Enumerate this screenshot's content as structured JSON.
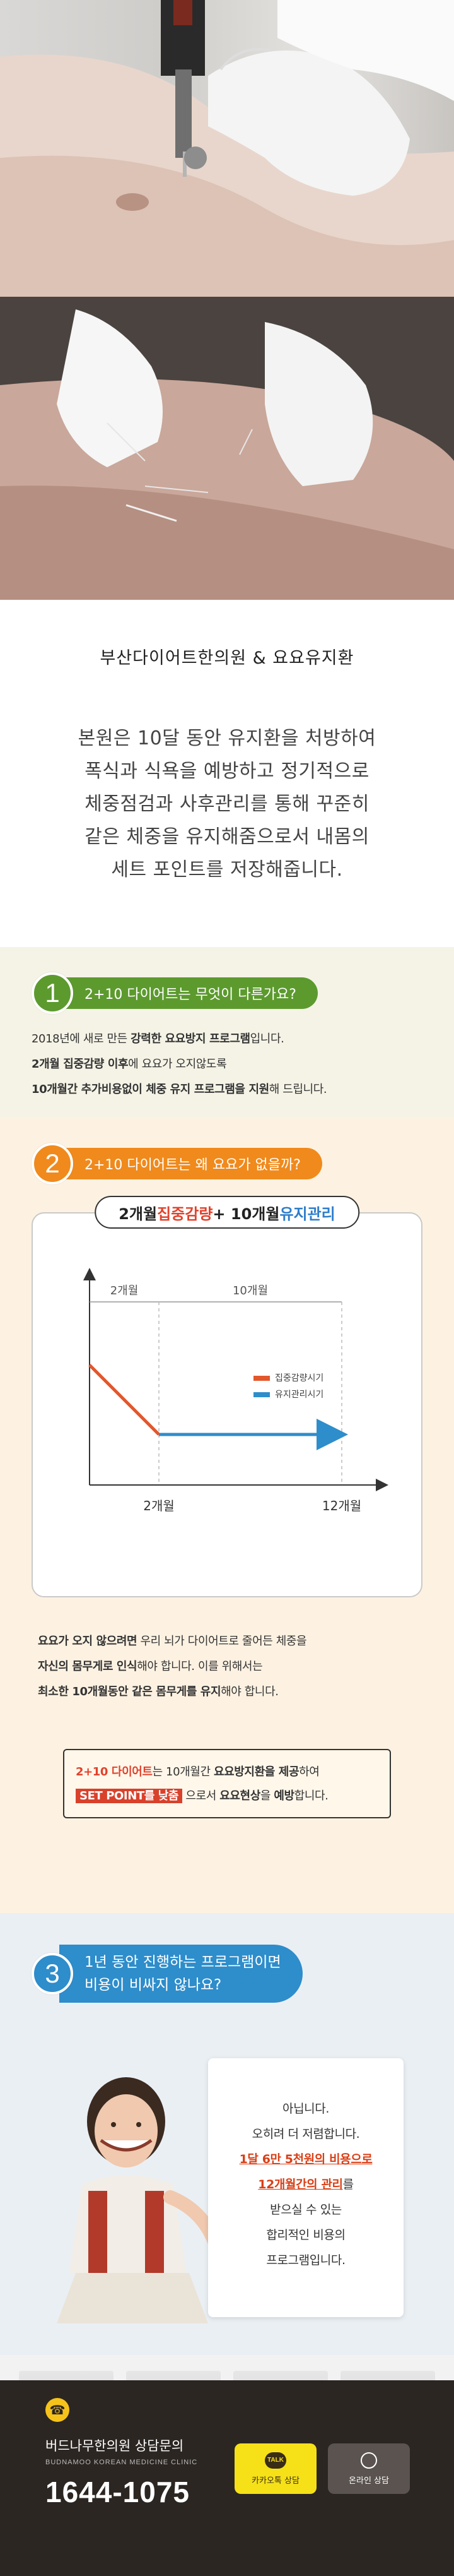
{
  "intro": {
    "title": "부산다이어트한의원 & 요요유지환",
    "lines": [
      "본원은 10달 동안 유지환을 처방하여",
      "폭식과 식욕을 예방하고 정기적으로",
      "체중점검과 사후관리를 통해 꾸준히",
      "같은 체중을 유지해줌으로서 내몸의",
      "세트 포인트를 저장해줍니다."
    ]
  },
  "section1": {
    "number": "1",
    "heading": "2+10 다이어트는 무엇이 다른가요?",
    "line1_a": "2018년에 새로 만든 ",
    "line1_b": "강력한 요요방지 프로그램",
    "line1_c": "입니다.",
    "line2_a": "2개월 집중감량 이후",
    "line2_b": "에 요요가 오지않도록",
    "line3_a": "10개월간 추가비용없이 체중 유지 프로그램을 지원",
    "line3_b": "해 드립니다."
  },
  "section2": {
    "number": "2",
    "heading": "2+10 다이어트는 왜 요요가 없을까?",
    "chart_title_a": "2개월 ",
    "chart_title_b": "집중감량",
    "chart_title_c": " + 10개월 ",
    "chart_title_d": "유지관리",
    "text1_a": "요요가 오지 않으려면",
    "text1_b": " 우리 뇌가 다이어트로 줄어든 체중을",
    "text2_a": "자신의 몸무게로 인식",
    "text2_b": "해야 합니다. 이를 위해서는",
    "text3_a": "최소한 10개월동안 같은 몸무게를 유지",
    "text3_b": "해야 합니다.",
    "note1_a": "2+10 다이어트",
    "note1_b": "는 10개월간 ",
    "note1_c": "요요방지환을 제공",
    "note1_d": "하여",
    "note2_a": "SET POINT를 낮춤",
    "note2_b": " 으로서 ",
    "note2_c": "요요현상",
    "note2_d": "을 ",
    "note2_e": "예방",
    "note2_f": "합니다."
  },
  "chart_data": {
    "type": "line",
    "title": "2개월 집중감량 + 10개월 유지관리",
    "x": [
      "0",
      "2개월",
      "12개월"
    ],
    "series": [
      {
        "name": "집중감량시기",
        "color": "#e2572b",
        "points": [
          [
            "0",
            "high"
          ],
          [
            "2개월",
            "low"
          ]
        ]
      },
      {
        "name": "유지관리시기",
        "color": "#2e8dcb",
        "points": [
          [
            "2개월",
            "low"
          ],
          [
            "12개월",
            "low"
          ]
        ]
      }
    ],
    "range_labels": [
      "2개월",
      "10개월"
    ],
    "xtick_labels": [
      "2개월",
      "12개월"
    ],
    "legend_position": "right"
  },
  "section3": {
    "number": "3",
    "heading_line1": "1년 동안 진행하는 프로그램이면",
    "heading_line2": "비용이 비싸지 않나요?",
    "answer": [
      "아닙니다.",
      "오히려 더 저렴합니다.",
      "1달 6만 5천원의 비용으로",
      "12개월간의 관리",
      "받으실 수 있는",
      "합리적인 비용의",
      "프로그램입니다."
    ],
    "answer_line4_suffix": "를"
  },
  "footer": {
    "title": "버드나무한의원 상담문의",
    "subtitle": "BUDNAMOO KOREAN MEDICINE CLINIC",
    "phone": "1644-1075",
    "kakao_icon": "TALK",
    "kakao_label": "카카오톡 상담",
    "online_label": "온라인 상담"
  },
  "colors": {
    "green": "#5c9a2e",
    "orange": "#f08a1c",
    "blue": "#2e8dcb",
    "red": "#e2412b"
  }
}
